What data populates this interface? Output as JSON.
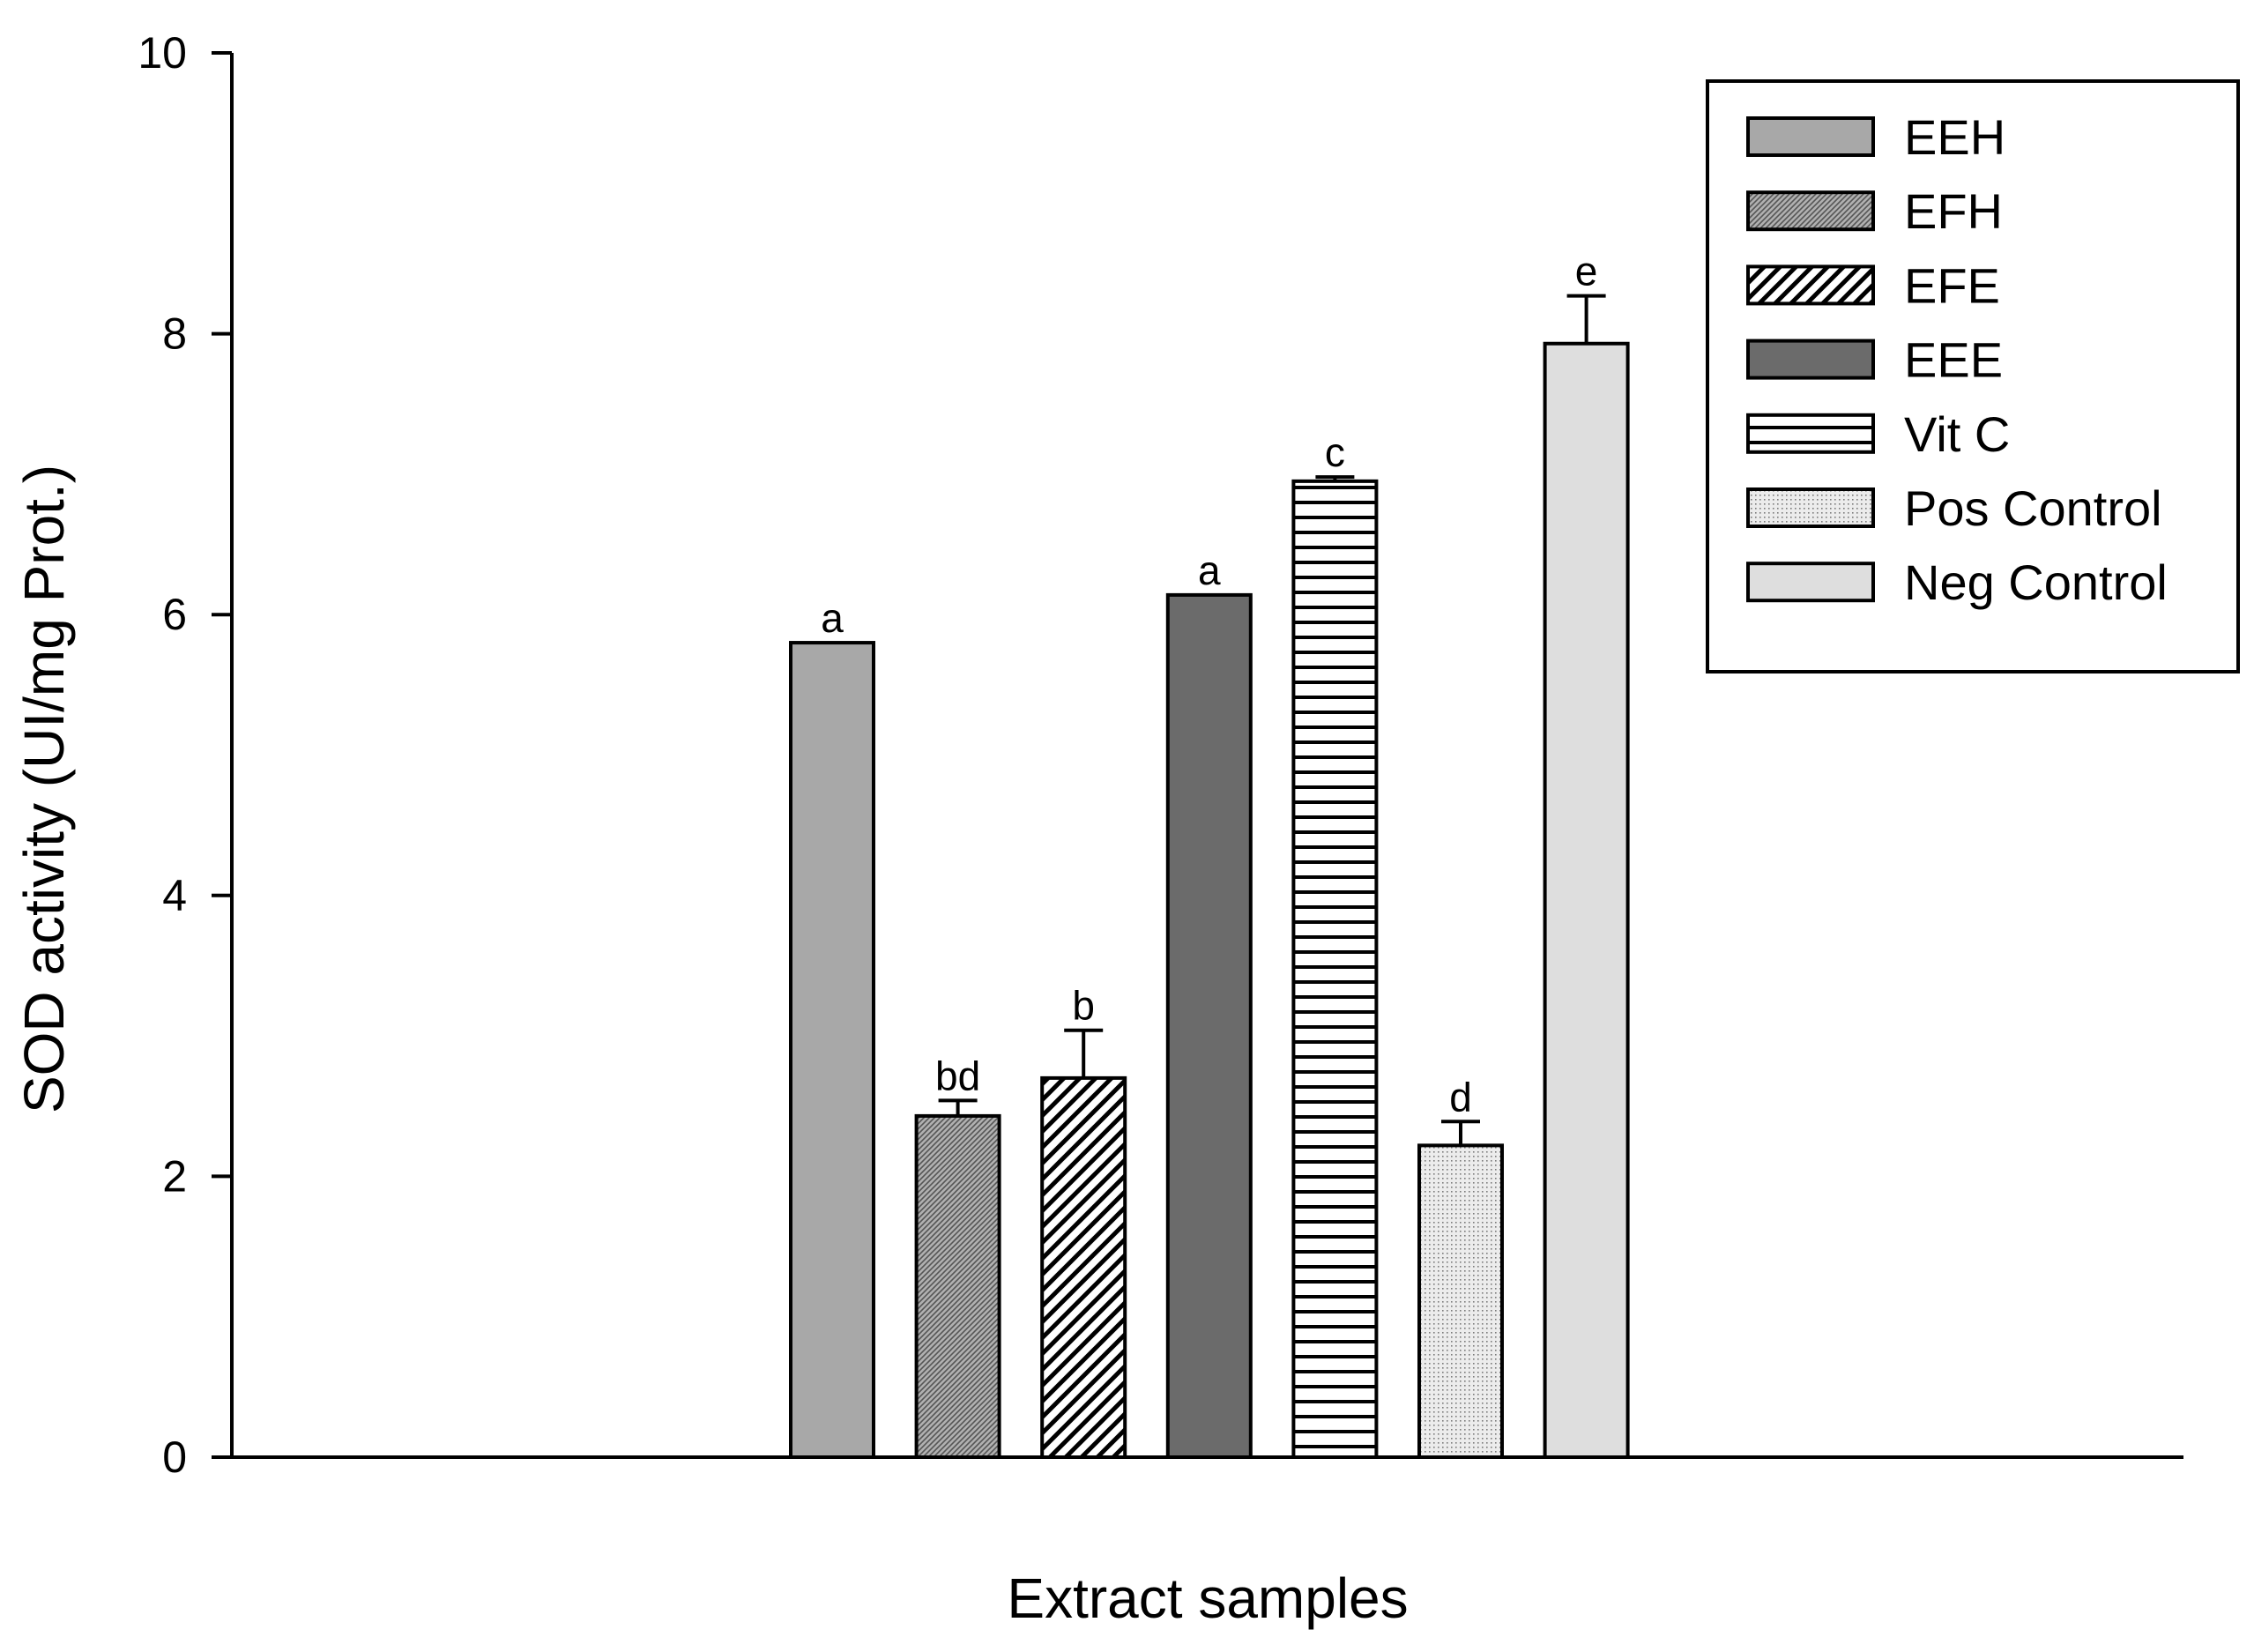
{
  "chart_data": {
    "type": "bar",
    "title": "",
    "xlabel": "Extract samples",
    "ylabel": "SOD activity (UI/mg Prot.)",
    "ylim": [
      0,
      10
    ],
    "yticks": [
      0,
      2,
      4,
      6,
      8,
      10
    ],
    "grid": false,
    "legend_position": "top-right",
    "series": [
      {
        "name": "EEH",
        "value": 5.8,
        "error": 0,
        "sig": "a",
        "fill": "solid",
        "color": "#a8a8a8"
      },
      {
        "name": "EFH",
        "value": 2.43,
        "error": 0.11,
        "sig": "bd",
        "fill": "fine-diagonal",
        "color": "#8c8c8c"
      },
      {
        "name": "EFE",
        "value": 2.7,
        "error": 0.34,
        "sig": "b",
        "fill": "diagonal-hatch",
        "color": "#000000"
      },
      {
        "name": "EEE",
        "value": 6.14,
        "error": 0,
        "sig": "a",
        "fill": "solid",
        "color": "#6b6b6b"
      },
      {
        "name": "Vit C",
        "value": 6.95,
        "error": 0.03,
        "sig": "c",
        "fill": "horizontal-lines",
        "color": "#000000"
      },
      {
        "name": "Pos Control",
        "value": 2.22,
        "error": 0.17,
        "sig": "d",
        "fill": "dots",
        "color": "#d2d2d2"
      },
      {
        "name": "Neg Control",
        "value": 7.93,
        "error": 0.34,
        "sig": "e",
        "fill": "solid",
        "color": "#dedede"
      }
    ]
  }
}
